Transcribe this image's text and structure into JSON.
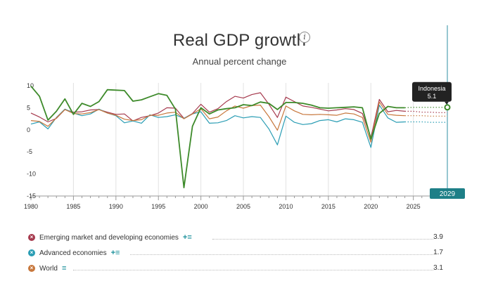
{
  "header": {
    "title": "Real GDP growth",
    "subtitle": "Annual percent change",
    "info_glyph": "i"
  },
  "chart_data": {
    "type": "line",
    "title": "Real GDP growth",
    "subtitle": "Annual percent change",
    "xlabel": "",
    "ylabel": "",
    "xlim": [
      1980,
      2029
    ],
    "ylim": [
      -15,
      10
    ],
    "x_ticks": [
      1980,
      1985,
      1990,
      1995,
      2000,
      2005,
      2010,
      2015,
      2020,
      2025
    ],
    "y_ticks": [
      10,
      5,
      0,
      -5,
      -10,
      -15
    ],
    "x_tick_labels": [
      "1980",
      "1985",
      "1990",
      "1995",
      "2000",
      "2005",
      "2010",
      "2015",
      "2020",
      "2025"
    ],
    "y_tick_labels": [
      "10",
      "5",
      "0",
      "-5",
      "-10",
      "-15"
    ],
    "grid": true,
    "x": [
      1980,
      1981,
      1982,
      1983,
      1984,
      1985,
      1986,
      1987,
      1988,
      1989,
      1990,
      1991,
      1992,
      1993,
      1994,
      1995,
      1996,
      1997,
      1998,
      1999,
      2000,
      2001,
      2002,
      2003,
      2004,
      2005,
      2006,
      2007,
      2008,
      2009,
      2010,
      2011,
      2012,
      2013,
      2014,
      2015,
      2016,
      2017,
      2018,
      2019,
      2020,
      2021,
      2022,
      2023,
      2024
    ],
    "projection_start": 2024,
    "projection_end": 2029,
    "series": [
      {
        "name": "Emerging market and developing economies",
        "color": "#a63a4e",
        "values": [
          3.8,
          2.9,
          1.8,
          2.6,
          4.6,
          4.0,
          4.1,
          4.5,
          4.6,
          4.0,
          3.5,
          3.6,
          2.0,
          2.8,
          3.2,
          3.8,
          5.0,
          4.9,
          2.6,
          3.7,
          5.8,
          4.0,
          4.8,
          6.4,
          7.6,
          7.2,
          8.0,
          8.4,
          5.8,
          2.8,
          7.4,
          6.4,
          5.4,
          5.1,
          4.7,
          4.3,
          4.5,
          4.8,
          4.6,
          3.7,
          -1.8,
          6.9,
          4.1,
          4.4,
          4.2
        ],
        "projection": [
          4.2,
          4.2,
          4.0,
          4.0,
          3.9,
          3.9
        ]
      },
      {
        "name": "Advanced economies",
        "color": "#2a9db4",
        "values": [
          1.3,
          1.8,
          0.2,
          2.8,
          4.7,
          3.8,
          3.2,
          3.6,
          4.7,
          3.8,
          3.2,
          1.6,
          2.0,
          1.5,
          3.4,
          2.8,
          3.0,
          3.4,
          2.6,
          3.6,
          4.1,
          1.5,
          1.6,
          2.1,
          3.2,
          2.7,
          3.0,
          2.8,
          0.2,
          -3.4,
          3.1,
          1.7,
          1.2,
          1.4,
          2.1,
          2.3,
          1.8,
          2.5,
          2.3,
          1.7,
          -4.0,
          5.6,
          2.7,
          1.7,
          1.8
        ],
        "projection": [
          1.8,
          1.8,
          1.8,
          1.7,
          1.7,
          1.7
        ]
      },
      {
        "name": "World",
        "color": "#c7773c",
        "values": [
          2.1,
          1.9,
          0.8,
          2.7,
          4.6,
          3.7,
          3.6,
          3.9,
          4.6,
          3.8,
          3.3,
          2.4,
          2.1,
          2.3,
          3.3,
          3.3,
          3.8,
          4.0,
          2.5,
          3.6,
          4.8,
          2.5,
          2.9,
          4.3,
          5.4,
          4.9,
          5.5,
          5.6,
          3.0,
          -0.1,
          5.4,
          4.3,
          3.5,
          3.4,
          3.5,
          3.4,
          3.3,
          3.8,
          3.6,
          2.8,
          -2.8,
          6.3,
          3.5,
          3.3,
          3.2
        ],
        "projection": [
          3.2,
          3.2,
          3.2,
          3.1,
          3.1,
          3.1
        ]
      },
      {
        "name": "Indonesia",
        "color": "#3d8a2a",
        "values": [
          9.9,
          7.6,
          2.2,
          4.2,
          7.0,
          3.5,
          6.0,
          5.3,
          6.4,
          9.1,
          9.0,
          8.9,
          6.5,
          6.8,
          7.5,
          8.2,
          7.8,
          4.7,
          -13.1,
          0.8,
          5.0,
          3.6,
          4.5,
          4.8,
          5.0,
          5.7,
          5.5,
          6.3,
          6.0,
          4.6,
          6.2,
          6.2,
          6.0,
          5.6,
          5.0,
          4.9,
          5.0,
          5.1,
          5.2,
          5.0,
          -2.1,
          3.7,
          5.3,
          5.0,
          5.0
        ],
        "projection": [
          5.0,
          5.1,
          5.1,
          5.1,
          5.1,
          5.1
        ]
      }
    ],
    "tooltip": {
      "label": "Indonesia",
      "value": "5.1"
    },
    "highlight_year_label": "2029"
  },
  "legend": {
    "items": [
      {
        "label": "Emerging market and developing economies",
        "value": "3.9",
        "color": "#a63a4e",
        "actions": "+≡"
      },
      {
        "label": "Advanced economies",
        "value": "1.7",
        "color": "#2a9db4",
        "actions": "+≡"
      },
      {
        "label": "World",
        "value": "3.1",
        "color": "#c7773c",
        "actions": "≡"
      }
    ]
  }
}
